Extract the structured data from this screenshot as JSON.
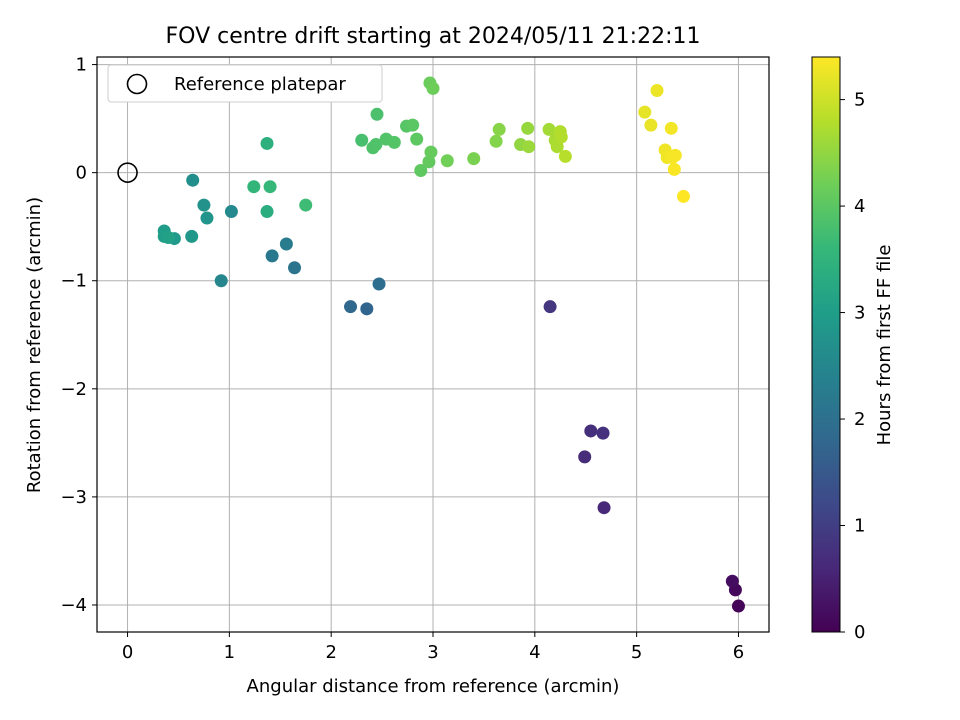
{
  "chart_data": {
    "type": "scatter",
    "title": "FOV centre drift starting at 2024/05/11 21:22:11",
    "xlabel": "Angular distance from reference (arcmin)",
    "ylabel": "Rotation from reference (arcmin)",
    "xlim": [
      -0.3,
      6.3
    ],
    "ylim": [
      -4.25,
      1.07
    ],
    "xticks": [
      0,
      1,
      2,
      3,
      4,
      5,
      6
    ],
    "yticks": [
      -4,
      -3,
      -2,
      -1,
      0,
      1
    ],
    "xtick_labels": [
      "0",
      "1",
      "2",
      "3",
      "4",
      "5",
      "6"
    ],
    "ytick_labels": [
      "−4",
      "−3",
      "−2",
      "−1",
      "0",
      "1"
    ],
    "grid": true,
    "legend": {
      "position": "top-left",
      "entries": [
        {
          "label": "Reference platepar",
          "marker": "open-circle",
          "x": 0,
          "y": 0
        }
      ]
    },
    "colorbar": {
      "label": "Hours from first FF file",
      "colormap": "viridis",
      "range": [
        0,
        5.4
      ],
      "ticks": [
        0,
        1,
        2,
        3,
        4,
        5
      ],
      "tick_labels": [
        "0",
        "1",
        "2",
        "3",
        "4",
        "5"
      ]
    },
    "colormap_stops": [
      "#440154",
      "#482878",
      "#3e4989",
      "#31688e",
      "#26828e",
      "#1f9e89",
      "#35b779",
      "#6ece58",
      "#b5de2b",
      "#fde725"
    ],
    "points": [
      {
        "x": 6.0,
        "y": -4.01,
        "h": 0.05
      },
      {
        "x": 5.97,
        "y": -3.86,
        "h": 0.12
      },
      {
        "x": 5.94,
        "y": -3.78,
        "h": 0.18
      },
      {
        "x": 4.68,
        "y": -3.1,
        "h": 0.6
      },
      {
        "x": 4.49,
        "y": -2.63,
        "h": 0.68
      },
      {
        "x": 4.55,
        "y": -2.39,
        "h": 0.72
      },
      {
        "x": 4.67,
        "y": -2.41,
        "h": 0.76
      },
      {
        "x": 4.15,
        "y": -1.24,
        "h": 0.85
      },
      {
        "x": 2.35,
        "y": -1.26,
        "h": 1.75
      },
      {
        "x": 2.19,
        "y": -1.24,
        "h": 1.8
      },
      {
        "x": 2.47,
        "y": -1.03,
        "h": 1.92
      },
      {
        "x": 1.64,
        "y": -0.88,
        "h": 2.08
      },
      {
        "x": 1.42,
        "y": -0.77,
        "h": 2.18
      },
      {
        "x": 1.56,
        "y": -0.66,
        "h": 2.26
      },
      {
        "x": 0.92,
        "y": -1.0,
        "h": 2.5
      },
      {
        "x": 1.02,
        "y": -0.36,
        "h": 2.58
      },
      {
        "x": 0.64,
        "y": -0.07,
        "h": 2.68
      },
      {
        "x": 0.75,
        "y": -0.3,
        "h": 2.74
      },
      {
        "x": 0.78,
        "y": -0.42,
        "h": 2.8
      },
      {
        "x": 0.63,
        "y": -0.59,
        "h": 2.86
      },
      {
        "x": 0.46,
        "y": -0.61,
        "h": 2.92
      },
      {
        "x": 0.36,
        "y": -0.54,
        "h": 2.97
      },
      {
        "x": 0.36,
        "y": -0.59,
        "h": 3.02
      },
      {
        "x": 0.4,
        "y": -0.6,
        "h": 3.07
      },
      {
        "x": 1.37,
        "y": -0.36,
        "h": 3.35
      },
      {
        "x": 1.37,
        "y": 0.27,
        "h": 3.42
      },
      {
        "x": 1.24,
        "y": -0.13,
        "h": 3.55
      },
      {
        "x": 1.4,
        "y": -0.13,
        "h": 3.6
      },
      {
        "x": 1.75,
        "y": -0.3,
        "h": 3.7
      },
      {
        "x": 2.3,
        "y": 0.3,
        "h": 3.8
      },
      {
        "x": 2.45,
        "y": 0.54,
        "h": 3.84
      },
      {
        "x": 2.41,
        "y": 0.23,
        "h": 3.86
      },
      {
        "x": 2.44,
        "y": 0.26,
        "h": 3.88
      },
      {
        "x": 2.54,
        "y": 0.31,
        "h": 3.9
      },
      {
        "x": 2.62,
        "y": 0.28,
        "h": 3.93
      },
      {
        "x": 2.74,
        "y": 0.43,
        "h": 3.96
      },
      {
        "x": 2.8,
        "y": 0.44,
        "h": 3.99
      },
      {
        "x": 2.84,
        "y": 0.31,
        "h": 4.02
      },
      {
        "x": 2.88,
        "y": 0.02,
        "h": 4.05
      },
      {
        "x": 2.96,
        "y": 0.1,
        "h": 4.08
      },
      {
        "x": 2.98,
        "y": 0.19,
        "h": 4.12
      },
      {
        "x": 2.97,
        "y": 0.83,
        "h": 4.15
      },
      {
        "x": 3.0,
        "y": 0.78,
        "h": 4.18
      },
      {
        "x": 3.14,
        "y": 0.11,
        "h": 4.22
      },
      {
        "x": 3.4,
        "y": 0.13,
        "h": 4.3
      },
      {
        "x": 3.62,
        "y": 0.29,
        "h": 4.38
      },
      {
        "x": 3.65,
        "y": 0.4,
        "h": 4.42
      },
      {
        "x": 3.86,
        "y": 0.26,
        "h": 4.5
      },
      {
        "x": 3.93,
        "y": 0.41,
        "h": 4.55
      },
      {
        "x": 3.94,
        "y": 0.24,
        "h": 4.58
      },
      {
        "x": 4.14,
        "y": 0.4,
        "h": 4.66
      },
      {
        "x": 4.2,
        "y": 0.3,
        "h": 4.7
      },
      {
        "x": 4.22,
        "y": 0.24,
        "h": 4.73
      },
      {
        "x": 4.25,
        "y": 0.38,
        "h": 4.76
      },
      {
        "x": 4.26,
        "y": 0.33,
        "h": 4.78
      },
      {
        "x": 4.3,
        "y": 0.15,
        "h": 4.82
      },
      {
        "x": 5.08,
        "y": 0.56,
        "h": 5.2
      },
      {
        "x": 5.14,
        "y": 0.44,
        "h": 5.23
      },
      {
        "x": 5.2,
        "y": 0.76,
        "h": 5.26
      },
      {
        "x": 5.28,
        "y": 0.21,
        "h": 5.28
      },
      {
        "x": 5.3,
        "y": 0.14,
        "h": 5.3
      },
      {
        "x": 5.34,
        "y": 0.41,
        "h": 5.32
      },
      {
        "x": 5.35,
        "y": 0.14,
        "h": 5.33
      },
      {
        "x": 5.38,
        "y": 0.16,
        "h": 5.35
      },
      {
        "x": 5.37,
        "y": 0.03,
        "h": 5.37
      },
      {
        "x": 5.46,
        "y": -0.22,
        "h": 5.4
      }
    ]
  }
}
